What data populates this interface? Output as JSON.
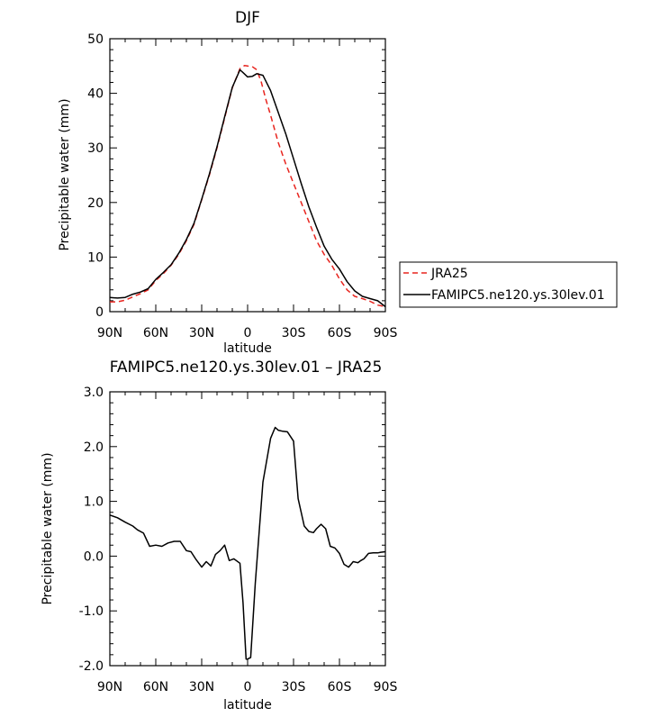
{
  "chart_data": [
    {
      "type": "line",
      "title": "DJF",
      "xlabel": "latitude",
      "ylabel": "Precipitable water (mm)",
      "x_ticks": [
        "90N",
        "60N",
        "30N",
        "0",
        "30S",
        "60S",
        "90S"
      ],
      "xlim": [
        90,
        -90
      ],
      "ylim": [
        0,
        50
      ],
      "y_ticks": [
        "0",
        "10",
        "20",
        "30",
        "40",
        "50"
      ],
      "legend_position": "right",
      "series": [
        {
          "name": "JRA25",
          "color": "#e8251f",
          "dash": "dashed",
          "x": [
            90,
            85,
            80,
            75,
            70,
            65,
            60,
            55,
            50,
            45,
            40,
            35,
            30,
            25,
            20,
            15,
            10,
            5,
            2,
            0,
            -3,
            -6,
            -9,
            -12,
            -15,
            -20,
            -25,
            -30,
            -35,
            -40,
            -45,
            -50,
            -55,
            -60,
            -65,
            -70,
            -75,
            -80,
            -85,
            -90
          ],
          "y": [
            1.8,
            1.8,
            2.1,
            2.7,
            3.3,
            4.0,
            5.7,
            7.0,
            8.5,
            10.5,
            13.0,
            16.0,
            20.5,
            25.0,
            30.0,
            35.5,
            41.0,
            44.5,
            45.1,
            45.0,
            44.9,
            44.3,
            42.0,
            38.8,
            36.0,
            31.0,
            27.0,
            23.5,
            20.0,
            16.5,
            13.0,
            10.5,
            8.5,
            6.0,
            4.0,
            2.8,
            2.4,
            1.9,
            1.2,
            0.9
          ]
        },
        {
          "name": "FAMIPC5.ne120.ys.30lev.01",
          "color": "#000000",
          "dash": "solid",
          "x": [
            90,
            85,
            80,
            75,
            70,
            65,
            60,
            55,
            50,
            45,
            40,
            35,
            30,
            25,
            20,
            15,
            10,
            5,
            3,
            0,
            -3,
            -6,
            -10,
            -15,
            -20,
            -25,
            -30,
            -35,
            -40,
            -45,
            -50,
            -55,
            -60,
            -65,
            -70,
            -75,
            -80,
            -85,
            -90
          ],
          "y": [
            2.6,
            2.5,
            2.6,
            3.2,
            3.6,
            4.2,
            5.9,
            7.2,
            8.6,
            10.7,
            13.2,
            16.2,
            20.6,
            25.2,
            30.2,
            35.7,
            41.1,
            44.3,
            43.8,
            43.0,
            43.1,
            43.6,
            43.3,
            40.5,
            36.5,
            32.5,
            28.0,
            23.5,
            19.2,
            15.5,
            12.0,
            9.6,
            7.8,
            5.5,
            3.8,
            2.8,
            2.4,
            2.0,
            0.9
          ]
        }
      ]
    },
    {
      "type": "line",
      "title": "FAMIPC5.ne120.ys.30lev.01 – JRA25",
      "xlabel": "latitude",
      "ylabel": "Precipitable water (mm)",
      "x_ticks": [
        "90N",
        "60N",
        "30N",
        "0",
        "30S",
        "60S",
        "90S"
      ],
      "xlim": [
        90,
        -90
      ],
      "ylim": [
        -2.0,
        3.0
      ],
      "y_ticks": [
        "-2.0",
        "-1.0",
        "0.0",
        "1.0",
        "2.0",
        "3.0"
      ],
      "series": [
        {
          "color": "#000000",
          "dash": "solid",
          "x": [
            90,
            85,
            80,
            75,
            72,
            68,
            64,
            60,
            56,
            52,
            48,
            44,
            40,
            37,
            34,
            30,
            27,
            24,
            21,
            18,
            15,
            12,
            9,
            5,
            3,
            1,
            0,
            -2,
            -5,
            -10,
            -15,
            -18,
            -20,
            -23,
            -26,
            -30,
            -33,
            -37,
            -40,
            -43,
            -45,
            -48,
            -51,
            -54,
            -57,
            -60,
            -63,
            -66,
            -69,
            -72,
            -74,
            -76,
            -79,
            -82,
            -85,
            -87,
            -90
          ],
          "y": [
            0.75,
            0.7,
            0.62,
            0.55,
            0.48,
            0.42,
            0.18,
            0.2,
            0.18,
            0.24,
            0.27,
            0.27,
            0.1,
            0.08,
            -0.05,
            -0.2,
            -0.1,
            -0.18,
            0.03,
            0.1,
            0.2,
            -0.08,
            -0.05,
            -0.13,
            -0.85,
            -1.88,
            -1.88,
            -1.85,
            -0.5,
            1.35,
            2.15,
            2.35,
            2.3,
            2.28,
            2.27,
            2.1,
            1.05,
            0.55,
            0.45,
            0.43,
            0.5,
            0.58,
            0.5,
            0.18,
            0.15,
            0.05,
            -0.15,
            -0.2,
            -0.1,
            -0.12,
            -0.08,
            -0.05,
            0.05,
            0.06,
            0.06,
            0.07,
            0.08
          ]
        }
      ]
    }
  ]
}
